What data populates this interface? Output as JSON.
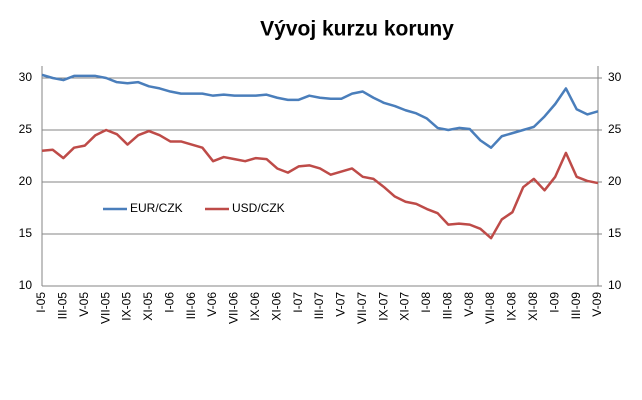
{
  "chart_data": {
    "type": "line",
    "title": "Vývoj kurzu koruny",
    "categories": [
      "I-05",
      null,
      "III-05",
      null,
      "V-05",
      null,
      "VII-05",
      null,
      "IX-05",
      null,
      "XI-05",
      null,
      "I-06",
      null,
      "III-06",
      null,
      "V-06",
      null,
      "VII-06",
      null,
      "IX-06",
      null,
      "XI-06",
      null,
      "I-07",
      null,
      "III-07",
      null,
      "V-07",
      null,
      "VII-07",
      null,
      "IX-07",
      null,
      "XI-07",
      null,
      "I-08",
      null,
      "III-08",
      null,
      "V-08",
      null,
      "VII-08",
      null,
      "IX-08",
      null,
      "XI-08",
      null,
      "I-09",
      null,
      "III-09",
      null,
      "V-09"
    ],
    "series": [
      {
        "name": "EUR/CZK",
        "color": "#4a7ebb",
        "values": [
          30.3,
          30.0,
          29.8,
          30.2,
          30.2,
          30.2,
          30.0,
          29.6,
          29.5,
          29.6,
          29.2,
          29.0,
          28.7,
          28.5,
          28.5,
          28.5,
          28.3,
          28.4,
          28.3,
          28.3,
          28.3,
          28.4,
          28.1,
          27.9,
          27.9,
          28.3,
          28.1,
          28.0,
          28.0,
          28.5,
          28.7,
          28.1,
          27.6,
          27.3,
          26.9,
          26.6,
          26.1,
          25.2,
          25.0,
          25.2,
          25.1,
          24.0,
          23.3,
          24.4,
          24.7,
          25.0,
          25.3,
          26.3,
          27.5,
          29.0,
          27.0,
          26.5,
          26.8
        ]
      },
      {
        "name": "USD/CZK",
        "color": "#be4b48",
        "values": [
          23.0,
          23.1,
          22.3,
          23.3,
          23.5,
          24.5,
          25.0,
          24.6,
          23.6,
          24.5,
          24.9,
          24.5,
          23.9,
          23.9,
          23.6,
          23.3,
          22.0,
          22.4,
          22.2,
          22.0,
          22.3,
          22.2,
          21.3,
          20.9,
          21.5,
          21.6,
          21.3,
          20.7,
          21.0,
          21.3,
          20.5,
          20.3,
          19.5,
          18.6,
          18.1,
          17.9,
          17.4,
          17.0,
          15.9,
          16.0,
          15.9,
          15.5,
          14.6,
          16.4,
          17.1,
          19.5,
          20.3,
          19.2,
          20.5,
          22.8,
          20.5,
          20.1,
          19.9
        ]
      }
    ],
    "ylim": [
      10,
      30
    ],
    "yticks": [
      10,
      15,
      20,
      25,
      30
    ],
    "y2lim": [
      10,
      30
    ],
    "y2ticks": [
      10,
      15,
      20,
      25,
      30
    ],
    "grid": true,
    "legend": "inside-left"
  }
}
